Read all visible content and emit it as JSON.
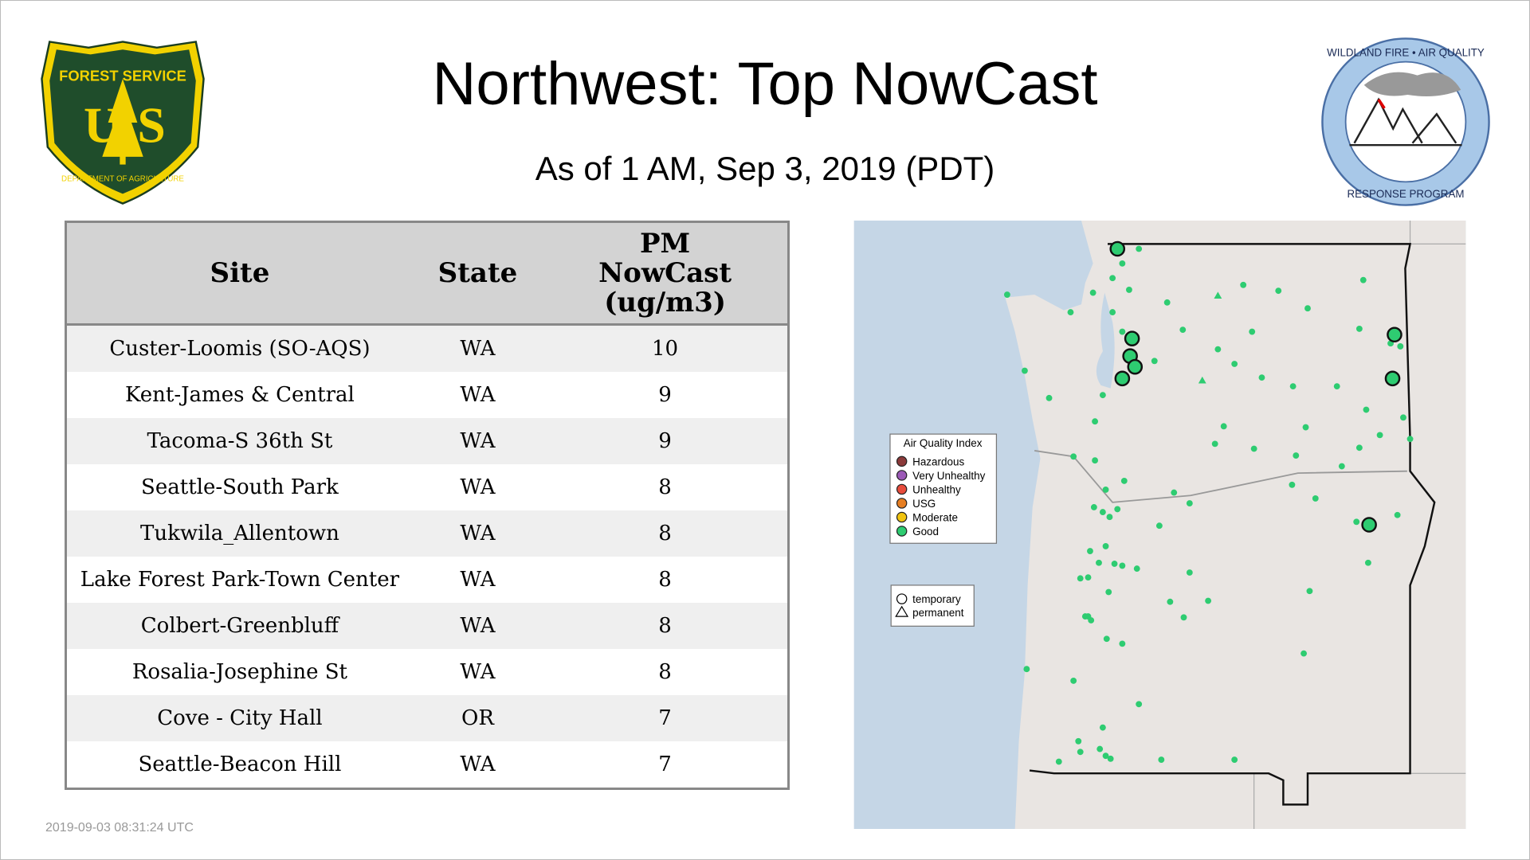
{
  "header": {
    "title": "Northwest: Top NowCast",
    "subtitle": "As of  1 AM, Sep  3, 2019 (PDT)"
  },
  "logos": {
    "usfs": {
      "top": "FOREST SERVICE",
      "letters": "U S",
      "bottom": "DEPARTMENT OF AGRICULTURE"
    },
    "wfaq": {
      "top": "WILDLAND FIRE • AIR QUALITY",
      "bottom": "RESPONSE PROGRAM"
    }
  },
  "table": {
    "headers": {
      "site": "Site",
      "state": "State",
      "pm_line1": "PM",
      "pm_line2": "NowCast",
      "pm_line3": "(ug/m3)"
    },
    "rows": [
      {
        "site": "Custer-Loomis (SO-AQS)",
        "state": "WA",
        "value": "10"
      },
      {
        "site": "Kent-James & Central",
        "state": "WA",
        "value": "9"
      },
      {
        "site": "Tacoma-S 36th St",
        "state": "WA",
        "value": "9"
      },
      {
        "site": "Seattle-South Park",
        "state": "WA",
        "value": "8"
      },
      {
        "site": "Tukwila_Allentown",
        "state": "WA",
        "value": "8"
      },
      {
        "site": "Lake Forest Park-Town Center",
        "state": "WA",
        "value": "8"
      },
      {
        "site": "Colbert-Greenbluff",
        "state": "WA",
        "value": "8"
      },
      {
        "site": "Rosalia-Josephine St",
        "state": "WA",
        "value": "8"
      },
      {
        "site": "Cove - City Hall",
        "state": "OR",
        "value": "7"
      },
      {
        "site": "Seattle-Beacon Hill",
        "state": "WA",
        "value": "7"
      }
    ]
  },
  "map": {
    "legend": {
      "title": "Air Quality Index",
      "items": [
        {
          "label": "Hazardous",
          "color": "#8b3a3a"
        },
        {
          "label": "Very Unhealthy",
          "color": "#9b59b6"
        },
        {
          "label": "Unhealthy",
          "color": "#e74c3c"
        },
        {
          "label": "USG",
          "color": "#e67e22"
        },
        {
          "label": "Moderate",
          "color": "#f1c40f"
        },
        {
          "label": "Good",
          "color": "#2ecc71"
        }
      ]
    },
    "shape_legend": {
      "temporary": "temporary",
      "permanent": "permanent"
    }
  },
  "footer": {
    "timestamp": "2019-09-03 08:31:24 UTC"
  }
}
